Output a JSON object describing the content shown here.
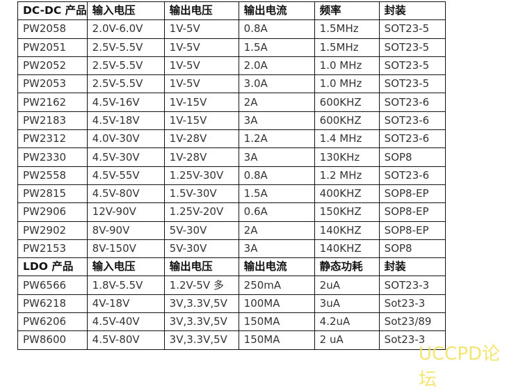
{
  "dcdc_header": [
    "DC-DC 产品",
    "输入电压",
    "输出电压",
    "输出电流",
    "频率",
    "封装"
  ],
  "dcdc_rows": [
    [
      "PW2058",
      "2.0V-6.0V",
      "1V-5V",
      "0.8A",
      "1.5MHz",
      "SOT23-5"
    ],
    [
      "PW2051",
      "2.5V-5.5V",
      "1V-5V",
      "1.5A",
      "1.5MHz",
      "SOT23-5"
    ],
    [
      "PW2052",
      "2.5V-5.5V",
      "1V-5V",
      "2.0A",
      "1.0 MHz",
      "SOT23-5"
    ],
    [
      "PW2053",
      "2.5V-5.5V",
      "1V-5V",
      "3.0A",
      "1.0 MHz",
      "SOT23-5"
    ],
    [
      "PW2162",
      "4.5V-16V",
      "1V-15V",
      "2A",
      "600KHZ",
      "SOT23-6"
    ],
    [
      "PW2183",
      "4.5V-18V",
      "1V-15V",
      "3A",
      "600KHZ",
      "SOT23-6"
    ],
    [
      "PW2312",
      "4.0V-30V",
      "1V-28V",
      "1.2A",
      "1.4 MHz",
      "SOT23-6"
    ],
    [
      "PW2330",
      "4.5V-30V",
      "1V-28V",
      "3A",
      "130KHz",
      "SOP8"
    ],
    [
      "PW2558",
      "4.5V-55V",
      "1.25V-30V",
      "0.8A",
      "1.2 MHz",
      "SOT23-6"
    ],
    [
      "PW2815",
      "4.5V-80V",
      "1.5V-30V",
      "1.5A",
      "400KHZ",
      "SOP8-EP"
    ],
    [
      "PW2906",
      "12V-90V",
      "1.25V-20V",
      "0.6A",
      "150KHZ",
      "SOP8-EP"
    ],
    [
      "PW2902",
      "8V-90V",
      "5V-30V",
      "2A",
      "140KHZ",
      "SOP8-EP"
    ],
    [
      "PW2153",
      "8V-150V",
      "5V-30V",
      "3A",
      "140KHZ",
      "SOP8"
    ]
  ],
  "ldo_header": [
    "LDO 产品",
    "输入电压",
    "输出电压",
    "输出电流",
    "静态功耗",
    "封装"
  ],
  "ldo_rows": [
    [
      "PW6566",
      "1.8V-5.5V",
      "1.2V-5V 多",
      "250mA",
      "2uA",
      "SOT23-3"
    ],
    [
      "PW6218",
      "4V-18V",
      "3V,3.3V,5V",
      "100MA",
      "3uA",
      "Sot23-3"
    ],
    [
      "PW6206",
      "4.5V-40V",
      "3V,3.3V,5V",
      "150MA",
      "4.2uA",
      "Sot23/89"
    ],
    [
      "PW8600",
      "4.5V-80V",
      "3V,3.3V,5V",
      "150MA",
      "2 uA",
      "Sot23-3"
    ]
  ],
  "watermark": "UCCPD论坛",
  "watermark_color": "#f3e15a"
}
